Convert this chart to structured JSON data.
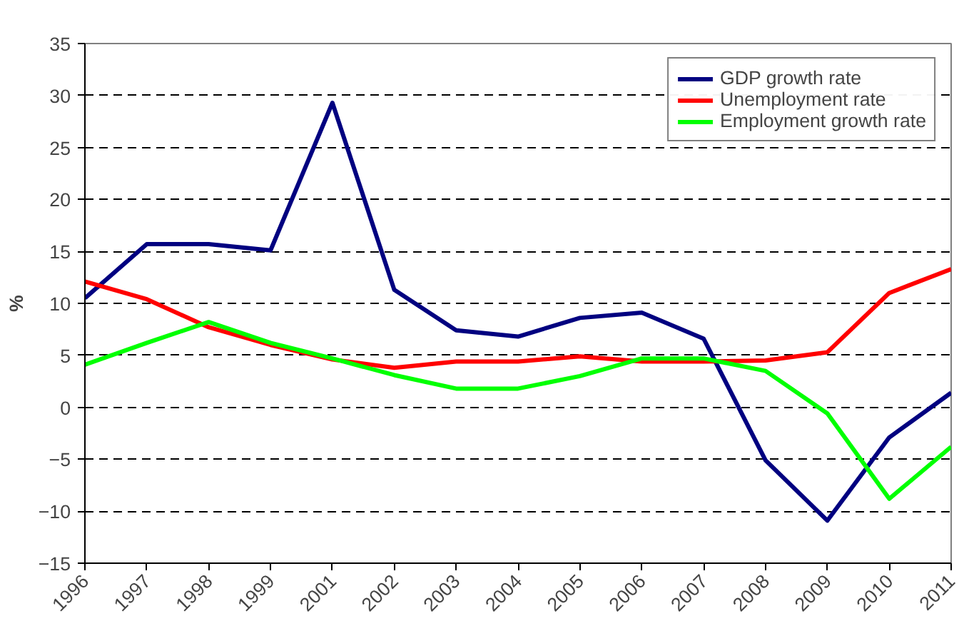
{
  "chart_data": {
    "type": "line",
    "ylabel": "%",
    "categories": [
      "1996",
      "1997",
      "1998",
      "1999",
      "2001",
      "2002",
      "2003",
      "2004",
      "2005",
      "2006",
      "2007",
      "2008",
      "2009",
      "2010",
      "2011"
    ],
    "series": [
      {
        "name": "GDP growth rate",
        "color": "#000080",
        "values": [
          10.5,
          15.7,
          15.7,
          15.1,
          29.3,
          11.3,
          7.4,
          6.8,
          8.6,
          9.1,
          6.6,
          -5.1,
          -10.9,
          -2.9,
          1.4
        ]
      },
      {
        "name": "Unemployment rate",
        "color": "#ff0000",
        "values": [
          12.1,
          10.4,
          7.7,
          6.0,
          4.6,
          3.8,
          4.4,
          4.4,
          4.9,
          4.4,
          4.4,
          4.5,
          5.3,
          11.0,
          13.3
        ]
      },
      {
        "name": "Employment growth rate",
        "color": "#00ff00",
        "values": [
          4.1,
          6.2,
          8.2,
          6.2,
          4.7,
          3.1,
          1.8,
          1.8,
          3.0,
          4.7,
          4.7,
          3.5,
          -0.6,
          -8.8,
          -3.8
        ]
      }
    ],
    "ylim": [
      -15,
      35
    ],
    "yticks": [
      -15,
      -10,
      -5,
      0,
      5,
      10,
      15,
      20,
      25,
      30,
      35
    ],
    "grid": "y",
    "legend": "top right",
    "line_style": "solid",
    "marker": "none"
  }
}
